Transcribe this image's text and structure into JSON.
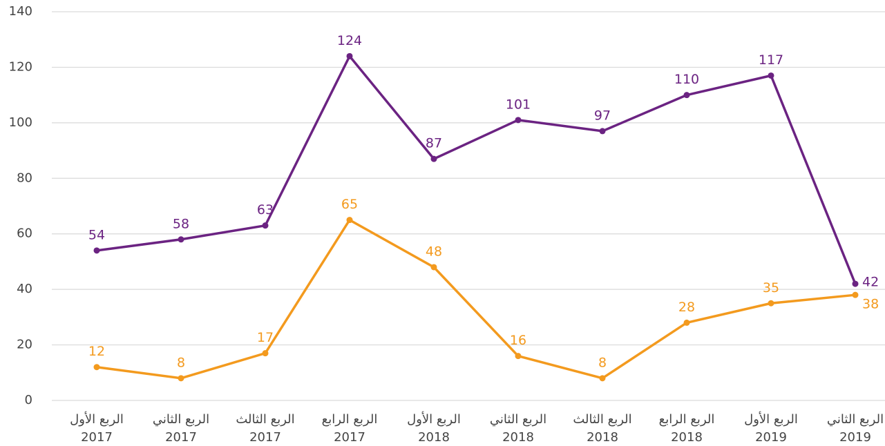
{
  "chart_data": {
    "type": "line",
    "categories": [
      [
        "الربع الأول",
        "2017"
      ],
      [
        "الربع الثاني",
        "2017"
      ],
      [
        "الربع الثالث",
        "2017"
      ],
      [
        "الربع الرابع",
        "2017"
      ],
      [
        "الربع الأول",
        "2018"
      ],
      [
        "الربع الثاني",
        "2018"
      ],
      [
        "الربع الثالث",
        "2018"
      ],
      [
        "الربع الرابع",
        "2018"
      ],
      [
        "الربع الأول",
        "2019"
      ],
      [
        "الربع الثاني",
        "2019"
      ]
    ],
    "series": [
      {
        "color": "#6b2382",
        "values": [
          54,
          58,
          63,
          124,
          87,
          101,
          97,
          110,
          117,
          42
        ]
      },
      {
        "color": "#f39a1e",
        "values": [
          12,
          8,
          17,
          65,
          48,
          16,
          8,
          28,
          35,
          38
        ]
      }
    ],
    "ylim": [
      0,
      140
    ],
    "yticks": [
      0,
      20,
      40,
      60,
      80,
      100,
      120,
      140
    ],
    "grid": true
  }
}
